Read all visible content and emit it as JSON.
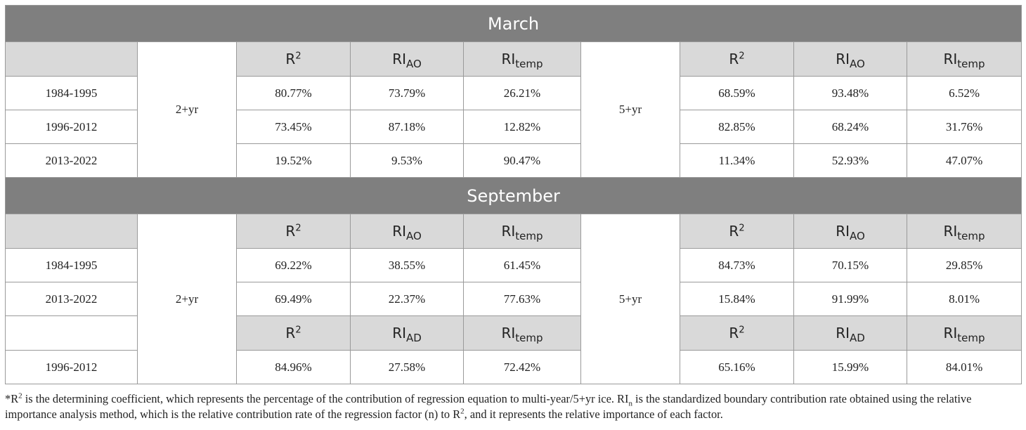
{
  "sections": {
    "march": {
      "title": "March",
      "group_a": "2+yr",
      "group_b": "5+yr",
      "header": {
        "r": "R",
        "r_sup": "2",
        "ri": "RI",
        "ri_sub_ao": "AO",
        "ri_sub_temp": "temp"
      },
      "rows": [
        {
          "period": "1984-1995",
          "a": [
            "80.77%",
            "73.79%",
            "26.21%"
          ],
          "b": [
            "68.59%",
            "93.48%",
            "6.52%"
          ]
        },
        {
          "period": "1996-2012",
          "a": [
            "73.45%",
            "87.18%",
            "12.82%"
          ],
          "b": [
            "82.85%",
            "68.24%",
            "31.76%"
          ]
        },
        {
          "period": "2013-2022",
          "a": [
            "19.52%",
            "9.53%",
            "90.47%"
          ],
          "b": [
            "11.34%",
            "52.93%",
            "47.07%"
          ]
        }
      ]
    },
    "september": {
      "title": "September",
      "group_a": "2+yr",
      "group_b": "5+yr",
      "header": {
        "r": "R",
        "r_sup": "2",
        "ri": "RI",
        "ri_sub_ao": "AO",
        "ri_sub_temp": "temp"
      },
      "header2": {
        "r": "R",
        "r_sup": "2",
        "ri": "RI",
        "ri_sub_ad": "AD",
        "ri_sub_temp": "temp"
      },
      "rows": [
        {
          "period": "1984-1995",
          "a": [
            "69.22%",
            "38.55%",
            "61.45%"
          ],
          "b": [
            "84.73%",
            "70.15%",
            "29.85%"
          ]
        },
        {
          "period": "2013-2022",
          "a": [
            "69.49%",
            "22.37%",
            "77.63%"
          ],
          "b": [
            "15.84%",
            "91.99%",
            "8.01%"
          ]
        },
        {
          "period": "1996-2012",
          "a": [
            "84.96%",
            "27.58%",
            "72.42%"
          ],
          "b": [
            "65.16%",
            "15.99%",
            "84.01%"
          ]
        }
      ]
    }
  },
  "footnote": {
    "star": "*",
    "r": "R",
    "r_sup": "2",
    "part1": " is the determining coefficient, which represents the percentage of the contribution of regression equation to multi-year/5+yr ice. RI",
    "ri_sub": "n",
    "part2": " is the standardized boundary contribution rate obtained using the relative importance analysis method, which is the relative contribution rate of the regression factor (n) to R",
    "r_sup2": "2",
    "part3": ", and it represents the relative importance of each factor."
  }
}
